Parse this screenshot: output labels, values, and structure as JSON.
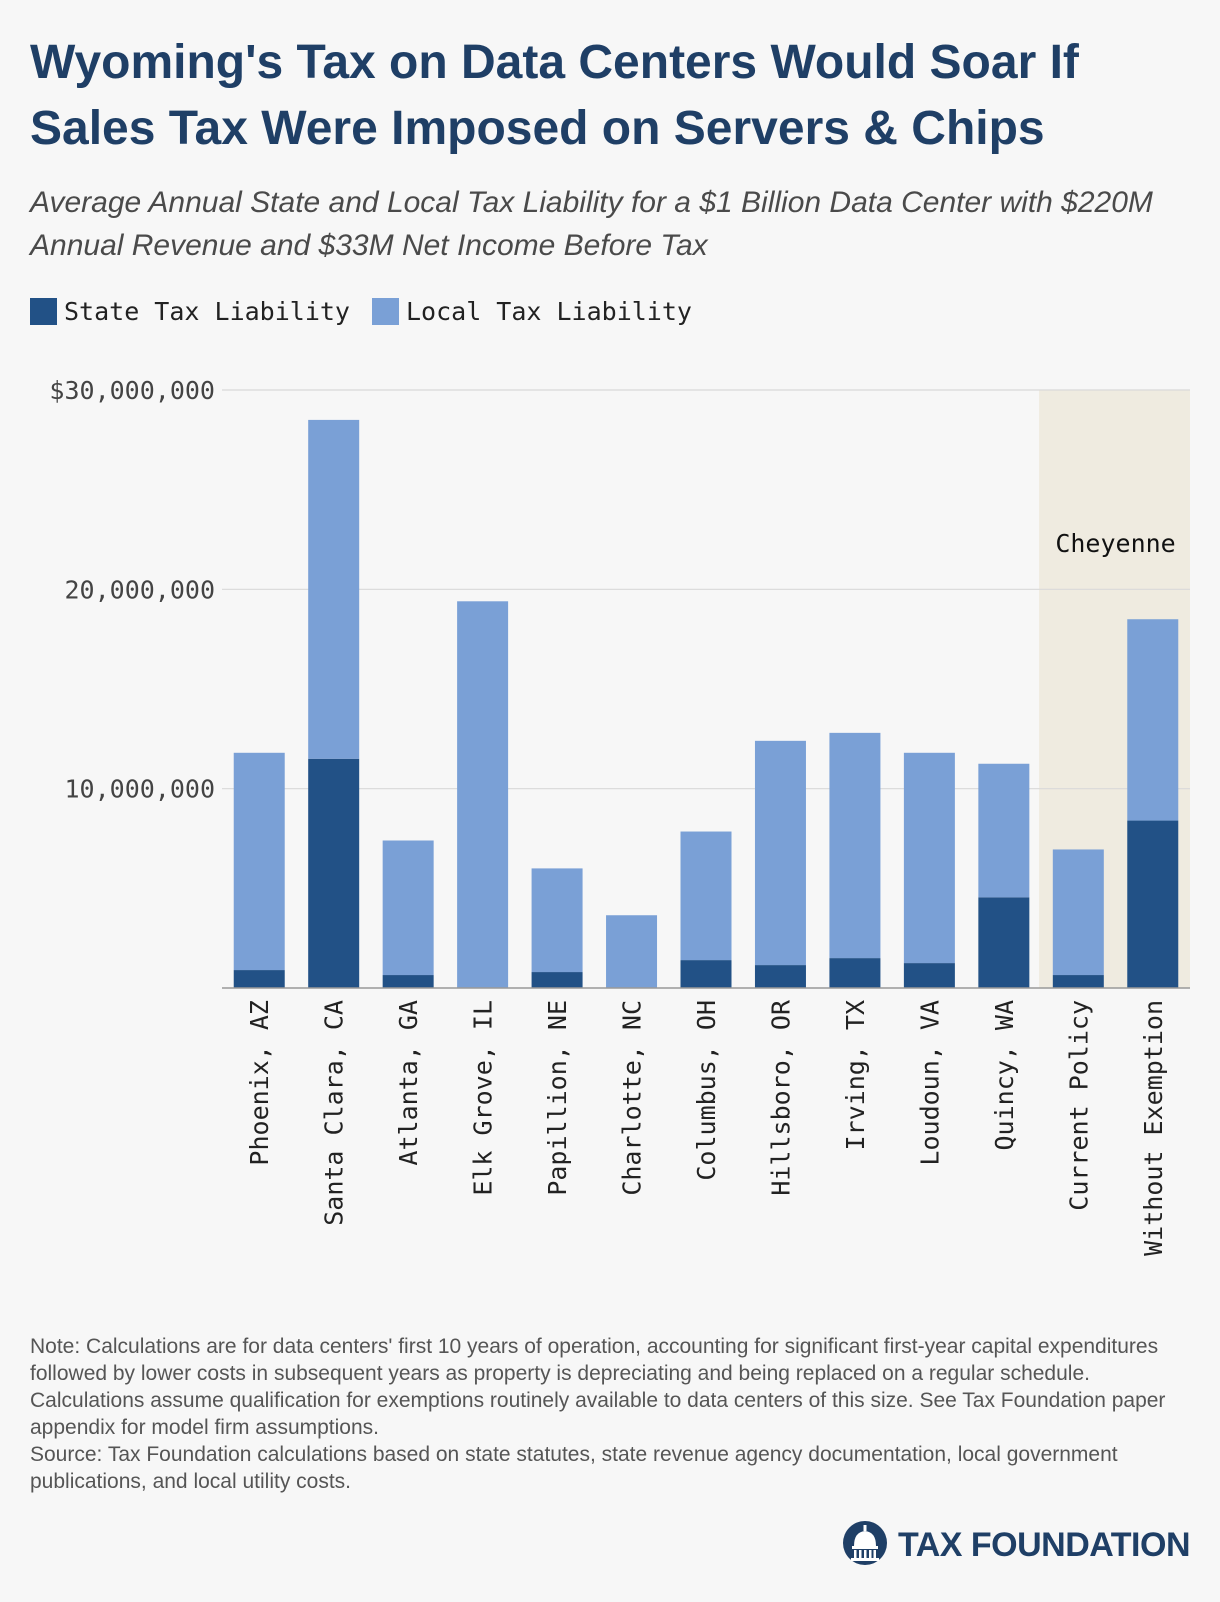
{
  "title": "Wyoming's Tax on Data Centers Would Soar If Sales Tax Were Imposed on Servers & Chips",
  "subtitle": "Average Annual State and Local Tax Liability for a $1 Billion Data Center with $220M Annual Revenue and $33M Net Income Before Tax",
  "colors": {
    "state": "#225186",
    "local": "#7aa0d6",
    "highlight": "#efebe0",
    "grid": "#d9d9d9",
    "title": "#1f3f66"
  },
  "legend": {
    "state": "State Tax Liability",
    "local": "Local Tax Liability"
  },
  "highlight_label": "Cheyenne",
  "notes": {
    "note": "Note: Calculations are for data centers' first 10 years of operation, accounting for significant first-year capital expenditures followed by lower costs in subsequent years as property is depreciating and being replaced on a regular schedule. Calculations assume qualification for exemptions routinely available to data centers of this size. See Tax Foundation paper appendix for model firm assumptions.",
    "source": "Source: Tax Foundation calculations based on state statutes, state revenue agency documentation, local government publications, and local utility costs."
  },
  "logo": {
    "text": "TAX FOUNDATION",
    "icon": "capitol-dome-icon"
  },
  "chart_data": {
    "type": "bar",
    "stacked": true,
    "categories": [
      "Phoenix, AZ",
      "Santa Clara, CA",
      "Atlanta, GA",
      "Elk Grove, IL",
      "Papillion, NE",
      "Charlotte, NC",
      "Columbus, OH",
      "Hillsboro, OR",
      "Irving, TX",
      "Loudoun, VA",
      "Quincy, WA",
      "Current Policy",
      "Without Exemption"
    ],
    "series": [
      {
        "name": "State Tax Liability",
        "values": [
          900000,
          11500000,
          650000,
          0,
          800000,
          0,
          1400000,
          1150000,
          1500000,
          1250000,
          4550000,
          650000,
          8400000
        ]
      },
      {
        "name": "Local Tax Liability",
        "values": [
          10900000,
          17000000,
          6750000,
          19400000,
          5200000,
          3650000,
          6450000,
          11250000,
          11300000,
          10550000,
          6700000,
          6300000,
          10100000
        ]
      }
    ],
    "ylim": [
      0,
      30000000
    ],
    "yticks": [
      0,
      10000000,
      20000000,
      30000000
    ],
    "ytick_labels": [
      "",
      "10,000,000",
      "20,000,000",
      "$30,000,000"
    ],
    "highlight_group": {
      "label": "Cheyenne",
      "categories": [
        "Current Policy",
        "Without Exemption"
      ]
    },
    "grid": true,
    "legend_position": "top-left"
  }
}
